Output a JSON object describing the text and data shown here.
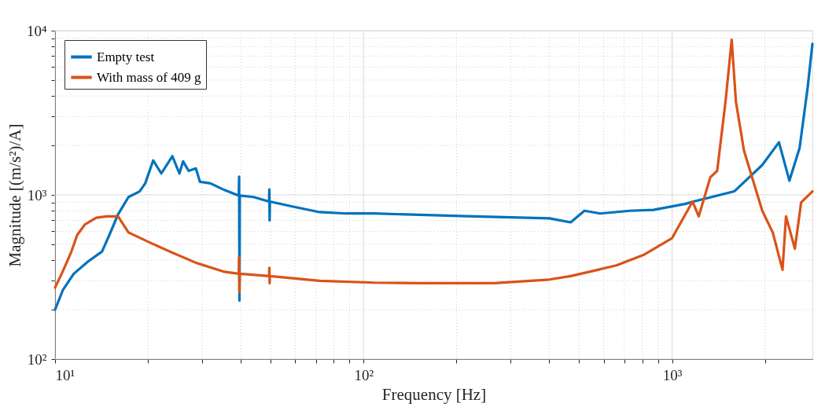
{
  "chart_data": {
    "type": "line",
    "xlabel": "Frequency [Hz]",
    "ylabel": "Magnitude [(m/s²)/A]",
    "log": "xy",
    "grid": true,
    "legend": "top left",
    "line_style": "solid",
    "marker": "none",
    "xlim": [
      10,
      2850
    ],
    "ylim": [
      100,
      10000
    ],
    "xticks": [
      {
        "value": 10,
        "label": "10¹"
      },
      {
        "value": 20,
        "label": null
      },
      {
        "value": 30,
        "label": null
      },
      {
        "value": 40,
        "label": null
      },
      {
        "value": 50,
        "label": null
      },
      {
        "value": 60,
        "label": null
      },
      {
        "value": 70,
        "label": null
      },
      {
        "value": 80,
        "label": null
      },
      {
        "value": 90,
        "label": null
      },
      {
        "value": 100,
        "label": "10²"
      },
      {
        "value": 200,
        "label": null
      },
      {
        "value": 300,
        "label": null
      },
      {
        "value": 400,
        "label": null
      },
      {
        "value": 500,
        "label": null
      },
      {
        "value": 600,
        "label": null
      },
      {
        "value": 700,
        "label": null
      },
      {
        "value": 800,
        "label": null
      },
      {
        "value": 900,
        "label": null
      },
      {
        "value": 1000,
        "label": "10³"
      },
      {
        "value": 2000,
        "label": null
      }
    ],
    "yticks": [
      {
        "value": 100,
        "label": "10²"
      },
      {
        "value": 200,
        "label": null
      },
      {
        "value": 300,
        "label": null
      },
      {
        "value": 400,
        "label": null
      },
      {
        "value": 500,
        "label": null
      },
      {
        "value": 600,
        "label": null
      },
      {
        "value": 700,
        "label": null
      },
      {
        "value": 800,
        "label": null
      },
      {
        "value": 900,
        "label": null
      },
      {
        "value": 1000,
        "label": "10³"
      },
      {
        "value": 2000,
        "label": null
      },
      {
        "value": 3000,
        "label": null
      },
      {
        "value": 4000,
        "label": null
      },
      {
        "value": 5000,
        "label": null
      },
      {
        "value": 6000,
        "label": null
      },
      {
        "value": 7000,
        "label": null
      },
      {
        "value": 8000,
        "label": null
      },
      {
        "value": 9000,
        "label": null
      },
      {
        "value": 10000,
        "label": "10⁴"
      }
    ],
    "series": [
      {
        "name": "Empty test",
        "color": "#0072bd",
        "x": [
          10,
          10.6,
          11.5,
          12.8,
          14.2,
          15.0,
          16.0,
          17.3,
          18.8,
          19.6,
          20.8,
          22.1,
          24.0,
          25.3,
          26.0,
          27.1,
          28.6,
          29.5,
          31.9,
          35.4,
          39.4,
          39.5,
          39.6,
          39.7,
          44,
          49.4,
          49.5,
          49.6,
          49.7,
          58.7,
          72,
          88,
          100,
          108,
          215,
          400,
          469,
          520,
          585,
          730,
          870,
          1100,
          1173,
          1590,
          1960,
          2220,
          2400,
          2590,
          2750,
          2850
        ],
        "values": [
          200,
          263,
          331,
          393,
          452,
          570,
          760,
          970,
          1050,
          1175,
          1620,
          1350,
          1720,
          1350,
          1600,
          1400,
          1450,
          1200,
          1175,
          1070,
          990,
          1290,
          227,
          990,
          970,
          910,
          1080,
          700,
          910,
          850,
          785,
          770,
          770,
          770,
          741,
          720,
          680,
          800,
          770,
          800,
          810,
          880,
          910,
          1050,
          1520,
          2090,
          1220,
          1930,
          4500,
          8300
        ]
      },
      {
        "name": "With mass of 409 g",
        "color": "#d95319",
        "x": [
          10,
          10.6,
          11.3,
          11.8,
          12.5,
          13.6,
          14.7,
          16,
          17.3,
          20.4,
          23.5,
          28.7,
          35.4,
          39.4,
          39.5,
          39.6,
          39.7,
          49.4,
          49.5,
          49.6,
          49.7,
          72,
          108,
          150,
          265,
          400,
          469,
          540,
          660,
          807,
          1000,
          1165,
          1220,
          1330,
          1400,
          1490,
          1560,
          1610,
          1710,
          1960,
          2120,
          2280,
          2340,
          2500,
          2620,
          2850
        ],
        "values": [
          272,
          343,
          452,
          570,
          661,
          725,
          740,
          740,
          590,
          510,
          452,
          385,
          340,
          331,
          418,
          257,
          331,
          320,
          360,
          290,
          320,
          300,
          292,
          290,
          290,
          305,
          320,
          340,
          372,
          430,
          545,
          910,
          740,
          1280,
          1400,
          3700,
          8800,
          3700,
          1860,
          800,
          590,
          350,
          740,
          470,
          900,
          1050
        ]
      }
    ]
  }
}
